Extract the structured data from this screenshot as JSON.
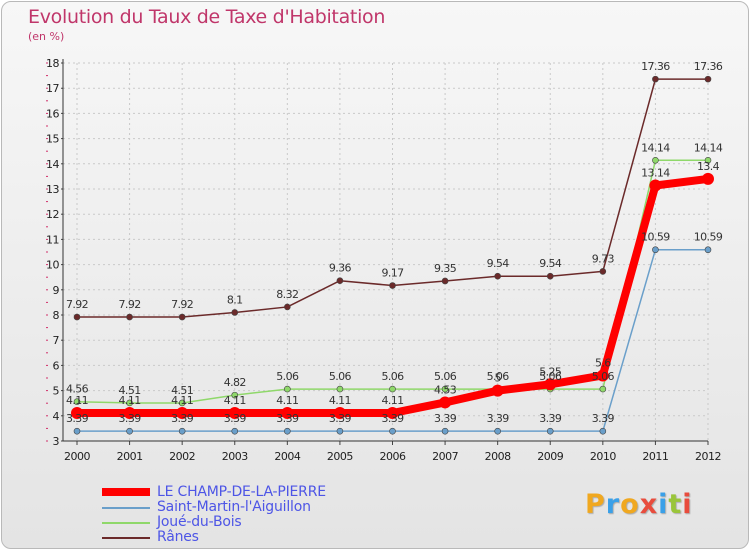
{
  "title": "Evolution du Taux de Taxe d'Habitation",
  "subtitle": "(en %)",
  "logo": {
    "text": "Proxiti",
    "colors": [
      "#f0a820",
      "#3aa0e8",
      "#f0a820",
      "#e84c3d",
      "#3aa0e8",
      "#9ac53a",
      "#e84c3d"
    ]
  },
  "chart_data": {
    "type": "line",
    "title": "Evolution du Taux de Taxe d'Habitation",
    "ylabel": "(en %)",
    "xlabel": "",
    "x": [
      "2000",
      "2001",
      "2002",
      "2003",
      "2004",
      "2005",
      "2006",
      "2007",
      "2008",
      "2009",
      "2010",
      "2011",
      "2012"
    ],
    "ylim": [
      3,
      18
    ],
    "yticks": [
      "3",
      "4",
      "5",
      "6",
      "7",
      "8",
      "9",
      "10",
      "11",
      "12",
      "13",
      "14",
      "15",
      "16",
      "17",
      "18"
    ],
    "grid": true,
    "legend_position": "bottom-left",
    "series": [
      {
        "name": "Rânes",
        "color": "#6b2a2a",
        "labels": true,
        "values": [
          7.92,
          7.92,
          7.92,
          8.1,
          8.32,
          9.36,
          9.17,
          9.35,
          9.54,
          9.54,
          9.73,
          17.36,
          17.36
        ]
      },
      {
        "name": "Joué-du-Bois",
        "color": "#8fd86a",
        "labels": true,
        "values": [
          4.56,
          4.51,
          4.51,
          4.82,
          5.06,
          5.06,
          5.06,
          5.06,
          5.06,
          5.06,
          5.06,
          14.14,
          14.14
        ]
      },
      {
        "name": "Saint-Martin-l'Aiguillon",
        "color": "#6a9fca",
        "labels": true,
        "values": [
          3.39,
          3.39,
          3.39,
          3.39,
          3.39,
          3.39,
          3.39,
          3.39,
          3.39,
          3.39,
          3.39,
          10.59,
          10.59
        ]
      },
      {
        "name": "LE CHAMP-DE-LA-PIERRE",
        "color": "#ff0000",
        "labels": true,
        "thick": true,
        "values": [
          4.11,
          4.11,
          4.11,
          4.11,
          4.11,
          4.11,
          4.11,
          4.53,
          5,
          5.25,
          5.6,
          13.14,
          13.4
        ]
      }
    ],
    "value_labels": [
      [
        "7.92",
        "7.92",
        "7.92",
        "8.1",
        "8.32",
        "9.36",
        "9.17",
        "9.35",
        "9.54",
        "9.54",
        "9.73",
        "17.36",
        "17.36"
      ],
      [
        "4.56",
        "4.51",
        "4.51",
        "4.82",
        "5.06",
        "5.06",
        "5.06",
        "5.06",
        "5.06",
        "5.06",
        "5.06",
        "14.14",
        "14.14"
      ],
      [
        "3.39",
        "3.39",
        "3.39",
        "3.39",
        "3.39",
        "3.39",
        "3.39",
        "3.39",
        "3.39",
        "3.39",
        "3.39",
        "10.59",
        "10.59"
      ],
      [
        "4.11",
        "4.11",
        "4.11",
        "4.11",
        "4.11",
        "4.11",
        "4.11",
        "4.53",
        "5",
        "5.25",
        "5.6",
        "13.14",
        "13.4"
      ]
    ]
  },
  "legend": [
    {
      "label": "LE CHAMP-DE-LA-PIERRE",
      "color": "#ff0000",
      "thick": true
    },
    {
      "label": "Saint-Martin-l'Aiguillon",
      "color": "#6a9fca"
    },
    {
      "label": "Joué-du-Bois",
      "color": "#8fd86a"
    },
    {
      "label": "Rânes",
      "color": "#6b2a2a"
    }
  ]
}
